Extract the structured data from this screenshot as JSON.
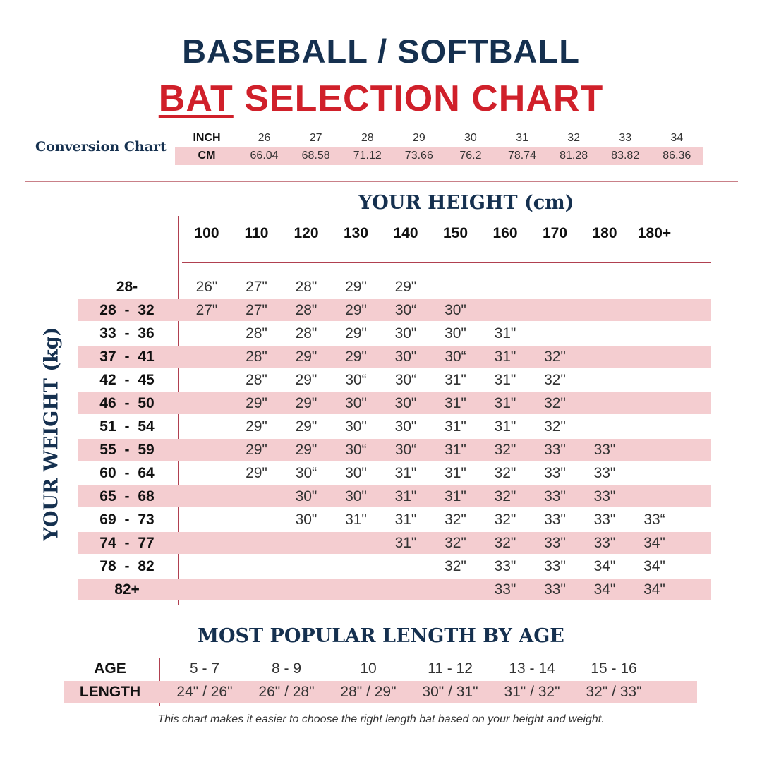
{
  "title": {
    "line1": "BASEBALL / SOFTBALL",
    "line2_highlight": "BAT",
    "line2_rest": " SELECTION CHART"
  },
  "conversion": {
    "label": "Conversion Chart",
    "inch_label": "INCH",
    "cm_label": "CM",
    "inch": [
      "26",
      "27",
      "28",
      "29",
      "30",
      "31",
      "32",
      "33",
      "34"
    ],
    "cm": [
      "66.04",
      "68.58",
      "71.12",
      "73.66",
      "76.2",
      "78.74",
      "81.28",
      "83.82",
      "86.36"
    ]
  },
  "height_title": "YOUR HEIGHT (cm)",
  "weight_title": "YOUR WEIGHT (kg)",
  "heights": [
    "100",
    "110",
    "120",
    "130",
    "140",
    "150",
    "160",
    "170",
    "180",
    "180+"
  ],
  "rows": [
    {
      "weight": "28-",
      "cells": [
        "26\"",
        "27\"",
        "28\"",
        "29\"",
        "29\"",
        "",
        "",
        "",
        "",
        ""
      ]
    },
    {
      "weight": "28 - 32",
      "cells": [
        "27\"",
        "27\"",
        "28\"",
        "29\"",
        "30“",
        "30\"",
        "",
        "",
        "",
        ""
      ]
    },
    {
      "weight": "33 - 36",
      "cells": [
        "",
        "28\"",
        "28\"",
        "29\"",
        "30\"",
        "30\"",
        "31\"",
        "",
        "",
        ""
      ]
    },
    {
      "weight": "37 - 41",
      "cells": [
        "",
        "28\"",
        "29\"",
        "29\"",
        "30\"",
        "30“",
        "31\"",
        "32\"",
        "",
        ""
      ]
    },
    {
      "weight": "42 - 45",
      "cells": [
        "",
        "28\"",
        "29\"",
        "30“",
        "30“",
        "31\"",
        "31\"",
        "32\"",
        "",
        ""
      ]
    },
    {
      "weight": "46 - 50",
      "cells": [
        "",
        "29\"",
        "29\"",
        "30\"",
        "30\"",
        "31\"",
        "31\"",
        "32\"",
        "",
        ""
      ]
    },
    {
      "weight": "51 - 54",
      "cells": [
        "",
        "29\"",
        "29\"",
        "30\"",
        "30\"",
        "31\"",
        "31\"",
        "32\"",
        "",
        ""
      ]
    },
    {
      "weight": "55 - 59",
      "cells": [
        "",
        "29\"",
        "29\"",
        "30“",
        "30“",
        "31\"",
        "32\"",
        "33\"",
        "33\"",
        ""
      ]
    },
    {
      "weight": "60 - 64",
      "cells": [
        "",
        "29\"",
        "30“",
        "30\"",
        "31\"",
        "31\"",
        "32\"",
        "33\"",
        "33\"",
        ""
      ]
    },
    {
      "weight": "65 - 68",
      "cells": [
        "",
        "",
        "30\"",
        "30\"",
        "31\"",
        "31\"",
        "32\"",
        "33\"",
        "33\"",
        ""
      ]
    },
    {
      "weight": "69 - 73",
      "cells": [
        "",
        "",
        "30\"",
        "31\"",
        "31\"",
        "32\"",
        "32\"",
        "33\"",
        "33\"",
        "33“"
      ]
    },
    {
      "weight": "74 - 77",
      "cells": [
        "",
        "",
        "",
        "",
        "31\"",
        "32\"",
        "32\"",
        "33\"",
        "33\"",
        "34\""
      ]
    },
    {
      "weight": "78 - 82",
      "cells": [
        "",
        "",
        "",
        "",
        "",
        "32\"",
        "33\"",
        "33\"",
        "34\"",
        "34\""
      ]
    },
    {
      "weight": "82+",
      "cells": [
        "",
        "",
        "",
        "",
        "",
        "",
        "33\"",
        "33\"",
        "34\"",
        "34\""
      ]
    }
  ],
  "age_section": {
    "title": "MOST POPULAR LENGTH BY AGE",
    "age_label": "AGE",
    "length_label": "LENGTH",
    "ages": [
      "5 - 7",
      "8 - 9",
      "10",
      "11 - 12",
      "13 - 14",
      "15 - 16"
    ],
    "lengths": [
      "24\" / 26\"",
      "26\" / 28\"",
      "28\" / 29\"",
      "30\" / 31\"",
      "31\" / 32\"",
      "32\" / 33\""
    ]
  },
  "note": "This chart makes it easier to choose the right length bat based on your height and weight.",
  "colors": {
    "navy": "#15304f",
    "red": "#d0202a",
    "shade": "#f4cdd0"
  }
}
